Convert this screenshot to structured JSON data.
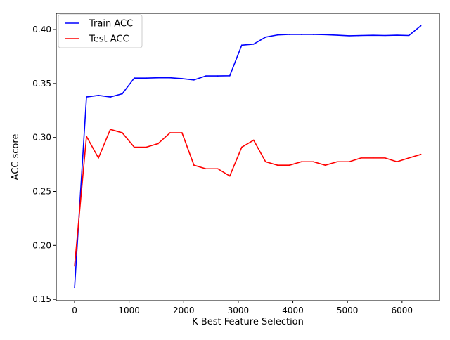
{
  "chart_data": {
    "type": "line",
    "title": "",
    "xlabel": "K Best Feature Selection",
    "ylabel": "ACC score",
    "xlim": [
      -335,
      6685
    ],
    "ylim": [
      0.1488,
      0.415
    ],
    "x_ticks": [
      0,
      1000,
      2000,
      3000,
      4000,
      5000,
      6000
    ],
    "x_tick_labels": [
      "0",
      "1000",
      "2000",
      "3000",
      "4000",
      "5000",
      "6000"
    ],
    "y_ticks": [
      0.15,
      0.2,
      0.25,
      0.3,
      0.35,
      0.4
    ],
    "y_tick_labels": [
      "0.15",
      "0.20",
      "0.25",
      "0.30",
      "0.35",
      "0.40"
    ],
    "grid": false,
    "legend_position": "upper-left",
    "x": [
      1,
      219,
      438,
      656,
      875,
      1094,
      1313,
      1531,
      1750,
      1969,
      2188,
      2406,
      2625,
      2844,
      3063,
      3281,
      3500,
      3719,
      3938,
      4156,
      4375,
      4594,
      4813,
      5031,
      5250,
      5469,
      5688,
      5906,
      6125,
      6344
    ],
    "series": [
      {
        "name": "Train ACC",
        "color": "#0000ff",
        "values": [
          0.161,
          0.3375,
          0.339,
          0.3375,
          0.3405,
          0.355,
          0.355,
          0.3553,
          0.3553,
          0.3545,
          0.3533,
          0.357,
          0.357,
          0.3572,
          0.3855,
          0.3865,
          0.393,
          0.395,
          0.3955,
          0.3955,
          0.3955,
          0.3953,
          0.3948,
          0.3942,
          0.3945,
          0.3947,
          0.3945,
          0.3948,
          0.3945,
          0.4035
        ]
      },
      {
        "name": "Test ACC",
        "color": "#ff0000",
        "values": [
          0.181,
          0.301,
          0.281,
          0.3075,
          0.3043,
          0.291,
          0.291,
          0.2943,
          0.3043,
          0.3043,
          0.2743,
          0.271,
          0.271,
          0.2643,
          0.291,
          0.2975,
          0.2775,
          0.2743,
          0.2743,
          0.2775,
          0.2775,
          0.2743,
          0.2775,
          0.2775,
          0.281,
          0.281,
          0.281,
          0.2775,
          0.281,
          0.2843
        ]
      }
    ]
  }
}
